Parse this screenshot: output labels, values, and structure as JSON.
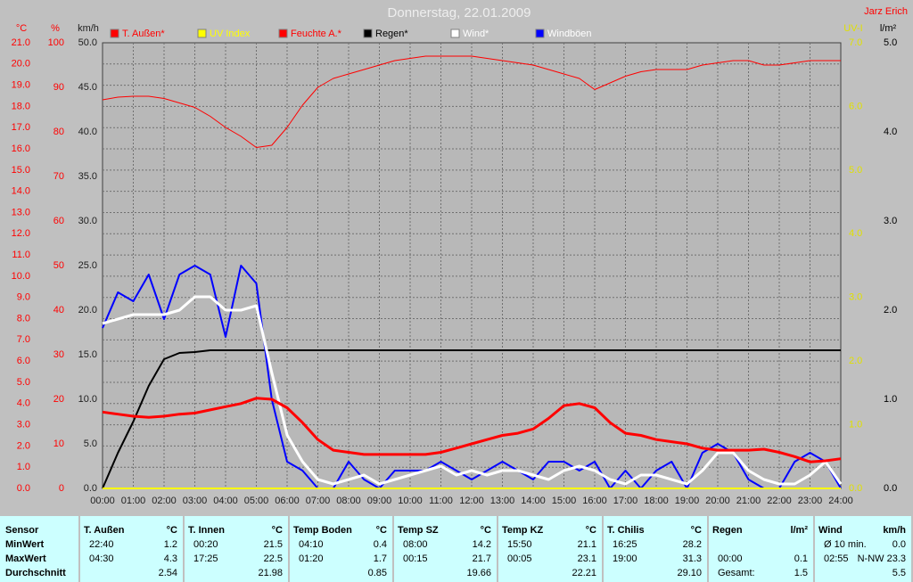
{
  "chart_data": {
    "type": "line",
    "title": "Donnerstag, 22.01.2009",
    "corner_text": "Jarz Erich",
    "xlim": [
      0,
      24
    ],
    "xticks": [
      {
        "value": 0,
        "label": "00:00"
      },
      {
        "value": 1,
        "label": "01:00"
      },
      {
        "value": 2,
        "label": "02:00"
      },
      {
        "value": 3,
        "label": "03:00"
      },
      {
        "value": 4,
        "label": "04:00"
      },
      {
        "value": 5,
        "label": "05:00"
      },
      {
        "value": 6,
        "label": "06:00"
      },
      {
        "value": 7,
        "label": "07:00"
      },
      {
        "value": 8,
        "label": "08:00"
      },
      {
        "value": 9,
        "label": "09:00"
      },
      {
        "value": 10,
        "label": "10:00"
      },
      {
        "value": 11,
        "label": "11:00"
      },
      {
        "value": 12,
        "label": "12:00"
      },
      {
        "value": 13,
        "label": "13:00"
      },
      {
        "value": 14,
        "label": "14:00"
      },
      {
        "value": 15,
        "label": "15:00"
      },
      {
        "value": 16,
        "label": "16:00"
      },
      {
        "value": 17,
        "label": "17:00"
      },
      {
        "value": 18,
        "label": "18:00"
      },
      {
        "value": 19,
        "label": "19:00"
      },
      {
        "value": 20,
        "label": "20:00"
      },
      {
        "value": 21,
        "label": "21:00"
      },
      {
        "value": 22,
        "label": "22:00"
      },
      {
        "value": 23,
        "label": "23:00"
      },
      {
        "value": 24,
        "label": "24:00"
      }
    ],
    "grid": true,
    "x": [
      0,
      0.5,
      1,
      1.5,
      2,
      2.5,
      3,
      3.5,
      4,
      4.5,
      5,
      5.5,
      6,
      6.5,
      7,
      7.5,
      8,
      8.5,
      9,
      9.5,
      10,
      10.5,
      11,
      11.5,
      12,
      12.5,
      13,
      13.5,
      14,
      14.5,
      15,
      15.5,
      16,
      16.5,
      17,
      17.5,
      18,
      18.5,
      19,
      19.5,
      20,
      20.5,
      21,
      21.5,
      22,
      22.5,
      23,
      23.5,
      24
    ],
    "axes": [
      {
        "label": "°C",
        "side": "left",
        "color": "#ff0000",
        "ylim": [
          0,
          21
        ],
        "yticks": [
          {
            "value": 0,
            "label": "0.0"
          },
          {
            "value": 1,
            "label": "1.0"
          },
          {
            "value": 2,
            "label": "2.0"
          },
          {
            "value": 3,
            "label": "3.0"
          },
          {
            "value": 4,
            "label": "4.0"
          },
          {
            "value": 5,
            "label": "5.0"
          },
          {
            "value": 6,
            "label": "6.0"
          },
          {
            "value": 7,
            "label": "7.0"
          },
          {
            "value": 8,
            "label": "8.0"
          },
          {
            "value": 9,
            "label": "9.0"
          },
          {
            "value": 10,
            "label": "10.0"
          },
          {
            "value": 11,
            "label": "11.0"
          },
          {
            "value": 12,
            "label": "12.0"
          },
          {
            "value": 13,
            "label": "13.0"
          },
          {
            "value": 14,
            "label": "14.0"
          },
          {
            "value": 15,
            "label": "15.0"
          },
          {
            "value": 16,
            "label": "16.0"
          },
          {
            "value": 17,
            "label": "17.0"
          },
          {
            "value": 18,
            "label": "18.0"
          },
          {
            "value": 19,
            "label": "19.0"
          },
          {
            "value": 20,
            "label": "20.0"
          },
          {
            "value": 21,
            "label": "21.0"
          }
        ]
      },
      {
        "label": "%",
        "side": "left",
        "color": "#ff0000",
        "ylim": [
          0,
          100
        ],
        "yticks": [
          0,
          10,
          20,
          30,
          40,
          50,
          60,
          70,
          80,
          90,
          100
        ]
      },
      {
        "label": "km/h",
        "side": "left",
        "color": "#202020",
        "ylim": [
          0,
          50
        ],
        "yticks": [
          {
            "value": 0,
            "label": "0.0"
          },
          {
            "value": 5,
            "label": "5.0"
          },
          {
            "value": 10,
            "label": "10.0"
          },
          {
            "value": 15,
            "label": "15.0"
          },
          {
            "value": 20,
            "label": "20.0"
          },
          {
            "value": 25,
            "label": "25.0"
          },
          {
            "value": 30,
            "label": "30.0"
          },
          {
            "value": 35,
            "label": "35.0"
          },
          {
            "value": 40,
            "label": "40.0"
          },
          {
            "value": 45,
            "label": "45.0"
          },
          {
            "value": 50,
            "label": "50.0"
          }
        ]
      },
      {
        "label": "UV-I",
        "side": "right",
        "color": "#e0e000",
        "ylim": [
          0,
          7
        ],
        "yticks": [
          {
            "value": 0,
            "label": "0.0"
          },
          {
            "value": 1,
            "label": "1.0"
          },
          {
            "value": 2,
            "label": "2.0"
          },
          {
            "value": 3,
            "label": "3.0"
          },
          {
            "value": 4,
            "label": "4.0"
          },
          {
            "value": 5,
            "label": "5.0"
          },
          {
            "value": 6,
            "label": "6.0"
          },
          {
            "value": 7,
            "label": "7.0"
          }
        ]
      },
      {
        "label": "l/m²",
        "side": "right",
        "color": "#000000",
        "ylim": [
          0,
          5
        ],
        "yticks": [
          {
            "value": 0,
            "label": "0.0"
          },
          {
            "value": 1,
            "label": "1.0"
          },
          {
            "value": 2,
            "label": "2.0"
          },
          {
            "value": 3,
            "label": "3.0"
          },
          {
            "value": 4,
            "label": "4.0"
          },
          {
            "value": 5,
            "label": "5.0"
          }
        ]
      }
    ],
    "series": [
      {
        "name": "T. Außen*",
        "color": "#ff0000",
        "legend_text_color": "#ff0000",
        "axis": "°C",
        "values": [
          3.6,
          3.5,
          3.4,
          3.35,
          3.4,
          3.5,
          3.55,
          3.7,
          3.85,
          4.0,
          4.25,
          4.2,
          3.8,
          3.1,
          2.3,
          1.8,
          1.7,
          1.6,
          1.6,
          1.6,
          1.6,
          1.6,
          1.7,
          1.9,
          2.1,
          2.3,
          2.5,
          2.6,
          2.8,
          3.3,
          3.9,
          4.0,
          3.8,
          3.1,
          2.6,
          2.5,
          2.3,
          2.2,
          2.1,
          1.9,
          1.8,
          1.8,
          1.8,
          1.85,
          1.7,
          1.5,
          1.25,
          1.3,
          1.4
        ]
      },
      {
        "name": "UV Index",
        "color": "#ffff00",
        "legend_text_color": "#ffff00",
        "axis": "UV-I",
        "x": [
          0,
          24
        ],
        "values": [
          0,
          0
        ]
      },
      {
        "name": "Feuchte A.*",
        "color": "#ff0000",
        "legend_text_color": "#ff0000",
        "axis": "%",
        "values": [
          87.2,
          87.8,
          88,
          88,
          87.5,
          86.5,
          85.5,
          83.5,
          81,
          79,
          76.5,
          77,
          81,
          86,
          90,
          92,
          93,
          94,
          95,
          96,
          96.5,
          97,
          97,
          97,
          97,
          96.5,
          96,
          95.5,
          95,
          94,
          93,
          92,
          89.5,
          91,
          92.5,
          93.5,
          94,
          94,
          94,
          95,
          95.5,
          96,
          96,
          95,
          95,
          95.5,
          96,
          96,
          96
        ]
      },
      {
        "name": "Regen*",
        "color": "#000000",
        "legend_text_color": "#000000",
        "axis": "l/m²",
        "values": [
          0,
          0.4,
          0.75,
          1.15,
          1.45,
          1.52,
          1.53,
          1.55,
          1.55,
          1.55,
          1.55,
          1.55,
          1.55,
          1.55,
          1.55,
          1.55,
          1.55,
          1.55,
          1.55,
          1.55,
          1.55,
          1.55,
          1.55,
          1.55,
          1.55,
          1.55,
          1.55,
          1.55,
          1.55,
          1.55,
          1.55,
          1.55,
          1.55,
          1.55,
          1.55,
          1.55,
          1.55,
          1.55,
          1.55,
          1.55,
          1.55,
          1.55,
          1.55,
          1.55,
          1.55,
          1.55,
          1.55,
          1.55,
          1.55
        ]
      },
      {
        "name": "Wind*",
        "color": "#ffffff",
        "legend_text_color": "#ffffff",
        "axis": "km/h",
        "values": [
          18.5,
          19,
          19.5,
          19.5,
          19.5,
          20,
          21.5,
          21.5,
          20,
          20,
          20.5,
          13,
          6,
          3,
          1,
          0.5,
          1,
          1.5,
          0.5,
          1,
          1.5,
          2,
          2.5,
          1.5,
          2,
          1.5,
          2,
          2,
          1.5,
          1,
          2,
          2.5,
          2,
          1,
          0.5,
          1.5,
          1.5,
          1,
          0.5,
          2,
          4,
          4,
          2,
          1,
          0.5,
          0.5,
          1.5,
          3,
          0.5
        ]
      },
      {
        "name": "Windböen",
        "color": "#0000ff",
        "legend_text_color": "#ffffff",
        "axis": "km/h",
        "values": [
          18,
          22,
          21,
          24,
          19,
          24,
          25,
          24,
          17,
          25,
          23,
          10,
          3,
          2,
          0,
          0,
          3,
          1,
          0,
          2,
          2,
          2,
          3,
          2,
          1,
          2,
          3,
          2,
          1,
          3,
          3,
          2,
          3,
          0,
          2,
          0,
          2,
          3,
          0,
          4,
          5,
          4,
          1,
          0,
          0,
          3,
          4,
          3,
          0
        ]
      }
    ]
  },
  "table": {
    "header": "Sensor",
    "row_labels": [
      "MinWert",
      "MaxWert",
      "Durchschnitt"
    ],
    "columns": [
      {
        "name": "T. Außen",
        "unit": "°C",
        "cells": [
          [
            "22:40",
            "1.2"
          ],
          [
            "04:30",
            "4.3"
          ],
          [
            null,
            "2.54"
          ]
        ]
      },
      {
        "name": "T. Innen",
        "unit": "°C",
        "cells": [
          [
            "00:20",
            "21.5"
          ],
          [
            "17:25",
            "22.5"
          ],
          [
            null,
            "21.98"
          ]
        ]
      },
      {
        "name": "Temp Boden",
        "unit": "°C",
        "cells": [
          [
            "04:10",
            "0.4"
          ],
          [
            "01:20",
            "1.7"
          ],
          [
            null,
            "0.85"
          ]
        ]
      },
      {
        "name": "Temp SZ",
        "unit": "°C",
        "cells": [
          [
            "08:00",
            "14.2"
          ],
          [
            "00:15",
            "21.7"
          ],
          [
            null,
            "19.66"
          ]
        ]
      },
      {
        "name": "Temp KZ",
        "unit": "°C",
        "cells": [
          [
            "15:50",
            "21.1"
          ],
          [
            "00:05",
            "23.1"
          ],
          [
            null,
            "22.21"
          ]
        ]
      },
      {
        "name": "T. Chilis",
        "unit": "°C",
        "cells": [
          [
            "16:25",
            "28.2"
          ],
          [
            "19:00",
            "31.3"
          ],
          [
            null,
            "29.10"
          ]
        ]
      },
      {
        "name": "Regen",
        "unit": "l/m²",
        "cells": [
          [
            null,
            null
          ],
          [
            "00:00",
            "0.1"
          ],
          [
            "Gesamt:",
            "1.5"
          ]
        ]
      },
      {
        "name": "Wind",
        "unit": "km/h",
        "cells": [
          [
            "Ø 10 min.",
            "0.0"
          ],
          [
            "02:55",
            "N-NW 23.3"
          ],
          [
            null,
            "5.5"
          ]
        ]
      }
    ]
  }
}
